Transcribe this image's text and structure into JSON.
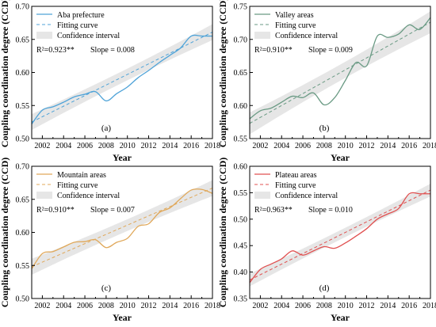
{
  "chart_data": [
    {
      "type": "line",
      "panel_label": "(a)",
      "xlabel": "Year",
      "ylabel": "Coupling coordination degree (CCD)",
      "xlim": [
        2001,
        2018
      ],
      "ylim": [
        0.5,
        0.7
      ],
      "xticks": [
        2002,
        2004,
        2006,
        2008,
        2010,
        2012,
        2014,
        2016,
        2018
      ],
      "yticks": [
        0.5,
        0.55,
        0.6,
        0.65,
        0.7
      ],
      "ytick_labels": [
        "0.50",
        "0.55",
        "0.60",
        "0.65",
        "0.70"
      ],
      "x": [
        2001,
        2002,
        2003,
        2004,
        2005,
        2006,
        2007,
        2008,
        2009,
        2010,
        2011,
        2012,
        2013,
        2014,
        2015,
        2016,
        2017,
        2018
      ],
      "series": [
        {
          "name": "Aba prefecture",
          "color": "#4fa3d8",
          "values": [
            0.522,
            0.543,
            0.548,
            0.555,
            0.563,
            0.567,
            0.571,
            0.557,
            0.568,
            0.578,
            0.592,
            0.603,
            0.615,
            0.626,
            0.637,
            0.655,
            0.655,
            0.655
          ]
        }
      ],
      "fit": {
        "name": "Fitting curve",
        "color": "#4fa3d8",
        "intercept_2001": 0.525,
        "slope": 0.008
      },
      "band": {
        "name": "Confidence interval",
        "half_width": 0.008
      },
      "r2_text": "R²=0.923**",
      "slope_text": "Slope = 0.008",
      "legend": "top-left"
    },
    {
      "type": "line",
      "panel_label": "(b)",
      "xlabel": "Year",
      "ylabel": "Coupling coordination degree (CCD)",
      "xlim": [
        2001,
        2018
      ],
      "ylim": [
        0.55,
        0.75
      ],
      "xticks": [
        2002,
        2004,
        2006,
        2008,
        2010,
        2012,
        2014,
        2016,
        2018
      ],
      "yticks": [
        0.55,
        0.6,
        0.65,
        0.7,
        0.75
      ],
      "ytick_labels": [
        "0.55",
        "0.60",
        "0.65",
        "0.70",
        "0.75"
      ],
      "x": [
        2001,
        2002,
        2003,
        2004,
        2005,
        2006,
        2007,
        2008,
        2009,
        2010,
        2011,
        2012,
        2013,
        2014,
        2015,
        2016,
        2017,
        2018
      ],
      "series": [
        {
          "name": "Valley areas",
          "color": "#6a9a84",
          "values": [
            0.58,
            0.592,
            0.596,
            0.605,
            0.614,
            0.612,
            0.619,
            0.601,
            0.612,
            0.638,
            0.665,
            0.66,
            0.705,
            0.703,
            0.708,
            0.722,
            0.715,
            0.733
          ]
        }
      ],
      "fit": {
        "name": "Fitting curve",
        "color": "#6a9a84",
        "intercept_2001": 0.573,
        "slope": 0.009
      },
      "band": {
        "name": "Confidence interval",
        "half_width": 0.011
      },
      "r2_text": "R²=0.910**",
      "slope_text": "Slope = 0.009",
      "legend": "top-left"
    },
    {
      "type": "line",
      "panel_label": "(c)",
      "xlabel": "Year",
      "ylabel": "Coupling coordination degree (CCD)",
      "xlim": [
        2001,
        2018
      ],
      "ylim": [
        0.5,
        0.7
      ],
      "xticks": [
        2002,
        2004,
        2006,
        2008,
        2010,
        2012,
        2014,
        2016,
        2018
      ],
      "yticks": [
        0.5,
        0.55,
        0.6,
        0.65,
        0.7
      ],
      "ytick_labels": [
        "0.50",
        "0.55",
        "0.60",
        "0.65",
        "0.70"
      ],
      "x": [
        2001,
        2002,
        2003,
        2004,
        2005,
        2006,
        2007,
        2008,
        2009,
        2010,
        2011,
        2012,
        2013,
        2014,
        2015,
        2016,
        2017,
        2018
      ],
      "series": [
        {
          "name": "Mountain areas",
          "color": "#e0a85a",
          "values": [
            0.545,
            0.568,
            0.571,
            0.578,
            0.585,
            0.586,
            0.589,
            0.577,
            0.585,
            0.591,
            0.609,
            0.613,
            0.63,
            0.637,
            0.651,
            0.664,
            0.665,
            0.659
          ]
        }
      ],
      "fit": {
        "name": "Fitting curve",
        "color": "#e0a85a",
        "intercept_2001": 0.548,
        "slope": 0.007
      },
      "band": {
        "name": "Confidence interval",
        "half_width": 0.008
      },
      "r2_text": "R²=0.910**",
      "slope_text": "Slope = 0.007",
      "legend": "top-left"
    },
    {
      "type": "line",
      "panel_label": "(d)",
      "xlabel": "Year",
      "ylabel": "Coupling coordination degree (CCD)",
      "xlim": [
        2001,
        2018
      ],
      "ylim": [
        0.35,
        0.6
      ],
      "xticks": [
        2002,
        2004,
        2006,
        2008,
        2010,
        2012,
        2014,
        2016,
        2018
      ],
      "yticks": [
        0.35,
        0.4,
        0.45,
        0.5,
        0.55,
        0.6
      ],
      "ytick_labels": [
        "0.35",
        "0.40",
        "0.45",
        "0.50",
        "0.55",
        "0.60"
      ],
      "x": [
        2001,
        2002,
        2003,
        2004,
        2005,
        2006,
        2007,
        2008,
        2009,
        2010,
        2011,
        2012,
        2013,
        2014,
        2015,
        2016,
        2017,
        2018
      ],
      "series": [
        {
          "name": "Plateau areas",
          "color": "#e05050",
          "values": [
            0.38,
            0.405,
            0.415,
            0.425,
            0.44,
            0.432,
            0.44,
            0.448,
            0.445,
            0.455,
            0.468,
            0.482,
            0.5,
            0.51,
            0.52,
            0.548,
            0.548,
            0.548
          ]
        }
      ],
      "fit": {
        "name": "Fitting curve",
        "color": "#e05050",
        "intercept_2001": 0.385,
        "slope": 0.01
      },
      "band": {
        "name": "Confidence interval",
        "half_width": 0.008
      },
      "r2_text": "R²=0.963**",
      "slope_text": "Slope = 0.010",
      "legend": "top-left"
    }
  ]
}
